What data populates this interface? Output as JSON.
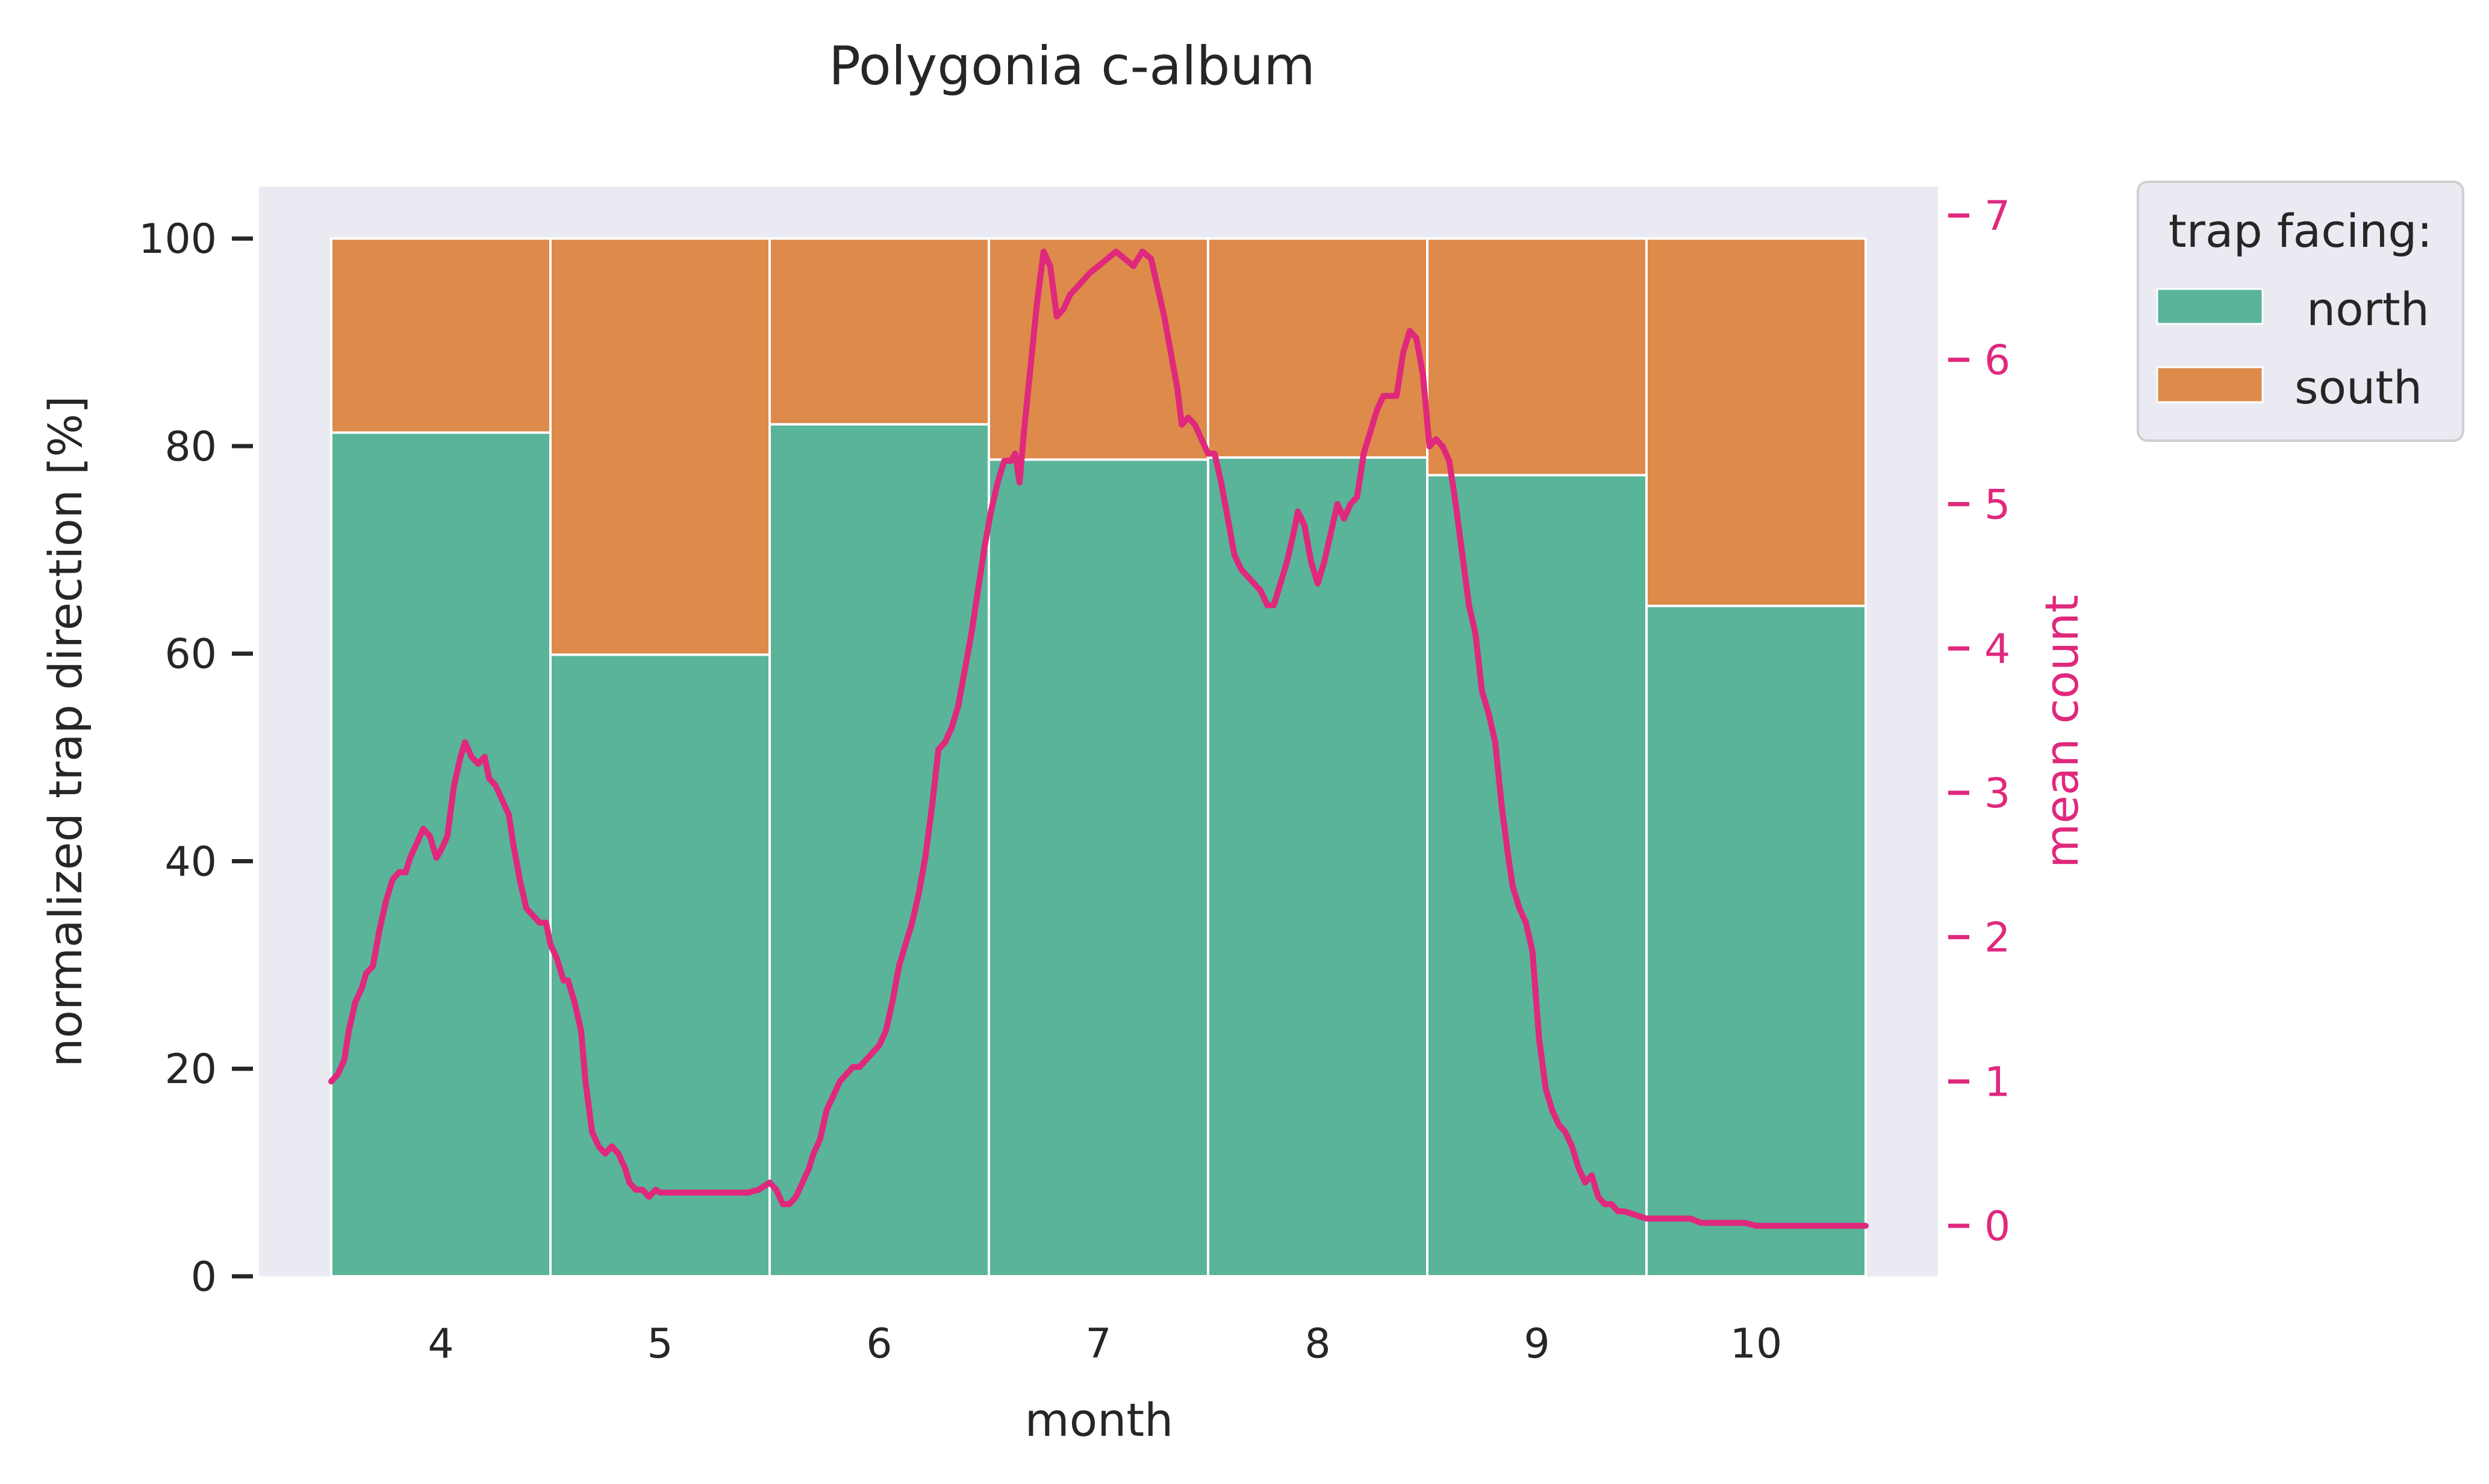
{
  "chart_data": {
    "type": "bar",
    "stacked": true,
    "title": "Polygonia c-album",
    "xlabel": "month",
    "ylabel": "normalized trap direction [%]",
    "ylim": [
      0,
      105
    ],
    "y_ticks": [
      0,
      20,
      40,
      60,
      80,
      100
    ],
    "categories": [
      "4",
      "5",
      "6",
      "7",
      "8",
      "9",
      "10"
    ],
    "series": [
      {
        "name": "north",
        "color": "#5ab49a",
        "values": [
          81.3,
          59.9,
          82.1,
          78.7,
          78.9,
          77.2,
          64.6
        ]
      },
      {
        "name": "south",
        "color": "#dd8a4b",
        "values": [
          18.7,
          40.1,
          17.9,
          21.3,
          21.1,
          22.8,
          35.4
        ]
      }
    ],
    "legend": {
      "title": "trap facing:",
      "placement": "outside upper right"
    },
    "background_color": "#eaeaf2",
    "grid": false,
    "secondary_axis": {
      "type": "line",
      "label": "mean count",
      "color": "#e0287d",
      "ylim": [
        -0.35,
        7.2
      ],
      "ticks": [
        0,
        1,
        2,
        3,
        4,
        5,
        6,
        7
      ],
      "x_unit": "month (category index 4–10; bars span ±0.5)",
      "points": [
        [
          3.5,
          1.0
        ],
        [
          3.53,
          1.05
        ],
        [
          3.56,
          1.15
        ],
        [
          3.58,
          1.35
        ],
        [
          3.61,
          1.55
        ],
        [
          3.64,
          1.65
        ],
        [
          3.66,
          1.75
        ],
        [
          3.69,
          1.8
        ],
        [
          3.72,
          2.05
        ],
        [
          3.75,
          2.25
        ],
        [
          3.78,
          2.4
        ],
        [
          3.81,
          2.45
        ],
        [
          3.84,
          2.45
        ],
        [
          3.86,
          2.55
        ],
        [
          3.89,
          2.65
        ],
        [
          3.92,
          2.75
        ],
        [
          3.95,
          2.7
        ],
        [
          3.98,
          2.55
        ],
        [
          4.0,
          2.6
        ],
        [
          4.03,
          2.7
        ],
        [
          4.06,
          3.05
        ],
        [
          4.09,
          3.25
        ],
        [
          4.11,
          3.35
        ],
        [
          4.14,
          3.25
        ],
        [
          4.17,
          3.2
        ],
        [
          4.2,
          3.25
        ],
        [
          4.22,
          3.1
        ],
        [
          4.25,
          3.05
        ],
        [
          4.28,
          2.95
        ],
        [
          4.31,
          2.85
        ],
        [
          4.33,
          2.65
        ],
        [
          4.36,
          2.4
        ],
        [
          4.39,
          2.2
        ],
        [
          4.42,
          2.15
        ],
        [
          4.45,
          2.1
        ],
        [
          4.48,
          2.1
        ],
        [
          4.5,
          1.95
        ],
        [
          4.53,
          1.85
        ],
        [
          4.56,
          1.7
        ],
        [
          4.58,
          1.7
        ],
        [
          4.61,
          1.55
        ],
        [
          4.64,
          1.35
        ],
        [
          4.66,
          1.0
        ],
        [
          4.69,
          0.65
        ],
        [
          4.72,
          0.55
        ],
        [
          4.75,
          0.5
        ],
        [
          4.78,
          0.55
        ],
        [
          4.81,
          0.5
        ],
        [
          4.84,
          0.4
        ],
        [
          4.86,
          0.3
        ],
        [
          4.89,
          0.25
        ],
        [
          4.92,
          0.25
        ],
        [
          4.95,
          0.2
        ],
        [
          4.98,
          0.25
        ],
        [
          5.0,
          0.23
        ],
        [
          5.1,
          0.23
        ],
        [
          5.2,
          0.23
        ],
        [
          5.3,
          0.23
        ],
        [
          5.4,
          0.23
        ],
        [
          5.45,
          0.25
        ],
        [
          5.5,
          0.3
        ],
        [
          5.53,
          0.25
        ],
        [
          5.56,
          0.15
        ],
        [
          5.59,
          0.15
        ],
        [
          5.62,
          0.2
        ],
        [
          5.65,
          0.3
        ],
        [
          5.68,
          0.4
        ],
        [
          5.7,
          0.5
        ],
        [
          5.73,
          0.6
        ],
        [
          5.76,
          0.8
        ],
        [
          5.79,
          0.9
        ],
        [
          5.82,
          1.0
        ],
        [
          5.85,
          1.05
        ],
        [
          5.88,
          1.1
        ],
        [
          5.91,
          1.1
        ],
        [
          5.94,
          1.15
        ],
        [
          5.97,
          1.2
        ],
        [
          6.0,
          1.25
        ],
        [
          6.03,
          1.35
        ],
        [
          6.06,
          1.55
        ],
        [
          6.09,
          1.8
        ],
        [
          6.12,
          1.95
        ],
        [
          6.15,
          2.1
        ],
        [
          6.18,
          2.3
        ],
        [
          6.21,
          2.55
        ],
        [
          6.24,
          2.9
        ],
        [
          6.27,
          3.3
        ],
        [
          6.3,
          3.35
        ],
        [
          6.33,
          3.45
        ],
        [
          6.36,
          3.6
        ],
        [
          6.39,
          3.85
        ],
        [
          6.42,
          4.1
        ],
        [
          6.45,
          4.4
        ],
        [
          6.48,
          4.7
        ],
        [
          6.51,
          4.95
        ],
        [
          6.54,
          5.15
        ],
        [
          6.57,
          5.3
        ],
        [
          6.6,
          5.3
        ],
        [
          6.62,
          5.35
        ],
        [
          6.64,
          5.15
        ],
        [
          6.66,
          5.5
        ],
        [
          6.69,
          5.95
        ],
        [
          6.72,
          6.4
        ],
        [
          6.75,
          6.75
        ],
        [
          6.78,
          6.65
        ],
        [
          6.81,
          6.3
        ],
        [
          6.84,
          6.35
        ],
        [
          6.87,
          6.45
        ],
        [
          6.9,
          6.5
        ],
        [
          6.93,
          6.55
        ],
        [
          6.96,
          6.6
        ],
        [
          7.0,
          6.65
        ],
        [
          7.04,
          6.7
        ],
        [
          7.08,
          6.75
        ],
        [
          7.12,
          6.7
        ],
        [
          7.16,
          6.65
        ],
        [
          7.2,
          6.75
        ],
        [
          7.24,
          6.7
        ],
        [
          7.27,
          6.5
        ],
        [
          7.3,
          6.3
        ],
        [
          7.33,
          6.05
        ],
        [
          7.36,
          5.8
        ],
        [
          7.38,
          5.55
        ],
        [
          7.41,
          5.6
        ],
        [
          7.44,
          5.55
        ],
        [
          7.47,
          5.45
        ],
        [
          7.5,
          5.35
        ],
        [
          7.53,
          5.35
        ],
        [
          7.56,
          5.15
        ],
        [
          7.59,
          4.9
        ],
        [
          7.62,
          4.65
        ],
        [
          7.65,
          4.55
        ],
        [
          7.68,
          4.5
        ],
        [
          7.71,
          4.45
        ],
        [
          7.74,
          4.4
        ],
        [
          7.77,
          4.3
        ],
        [
          7.8,
          4.3
        ],
        [
          7.83,
          4.45
        ],
        [
          7.86,
          4.6
        ],
        [
          7.89,
          4.8
        ],
        [
          7.91,
          4.95
        ],
        [
          7.94,
          4.85
        ],
        [
          7.97,
          4.6
        ],
        [
          8.0,
          4.45
        ],
        [
          8.03,
          4.6
        ],
        [
          8.06,
          4.8
        ],
        [
          8.09,
          5.0
        ],
        [
          8.12,
          4.9
        ],
        [
          8.15,
          5.0
        ],
        [
          8.18,
          5.05
        ],
        [
          8.21,
          5.35
        ],
        [
          8.24,
          5.5
        ],
        [
          8.27,
          5.65
        ],
        [
          8.3,
          5.75
        ],
        [
          8.33,
          5.75
        ],
        [
          8.36,
          5.75
        ],
        [
          8.39,
          6.05
        ],
        [
          8.42,
          6.2
        ],
        [
          8.45,
          6.15
        ],
        [
          8.48,
          5.9
        ],
        [
          8.51,
          5.4
        ],
        [
          8.54,
          5.45
        ],
        [
          8.57,
          5.4
        ],
        [
          8.6,
          5.3
        ],
        [
          8.63,
          5.0
        ],
        [
          8.66,
          4.65
        ],
        [
          8.69,
          4.3
        ],
        [
          8.72,
          4.1
        ],
        [
          8.75,
          3.7
        ],
        [
          8.78,
          3.55
        ],
        [
          8.81,
          3.35
        ],
        [
          8.84,
          2.9
        ],
        [
          8.87,
          2.55
        ],
        [
          8.89,
          2.35
        ],
        [
          8.92,
          2.2
        ],
        [
          8.95,
          2.1
        ],
        [
          8.98,
          1.9
        ],
        [
          9.01,
          1.3
        ],
        [
          9.04,
          0.95
        ],
        [
          9.07,
          0.8
        ],
        [
          9.1,
          0.7
        ],
        [
          9.13,
          0.65
        ],
        [
          9.16,
          0.55
        ],
        [
          9.19,
          0.4
        ],
        [
          9.22,
          0.3
        ],
        [
          9.25,
          0.35
        ],
        [
          9.28,
          0.2
        ],
        [
          9.31,
          0.15
        ],
        [
          9.34,
          0.15
        ],
        [
          9.37,
          0.1
        ],
        [
          9.4,
          0.1
        ],
        [
          9.5,
          0.05
        ],
        [
          9.6,
          0.05
        ],
        [
          9.7,
          0.05
        ],
        [
          9.75,
          0.02
        ],
        [
          9.85,
          0.02
        ],
        [
          9.95,
          0.02
        ],
        [
          10.0,
          0.0
        ],
        [
          10.1,
          0.0
        ],
        [
          10.2,
          0.0
        ],
        [
          10.3,
          0.0
        ],
        [
          10.4,
          0.0
        ],
        [
          10.5,
          0.0
        ]
      ]
    }
  }
}
